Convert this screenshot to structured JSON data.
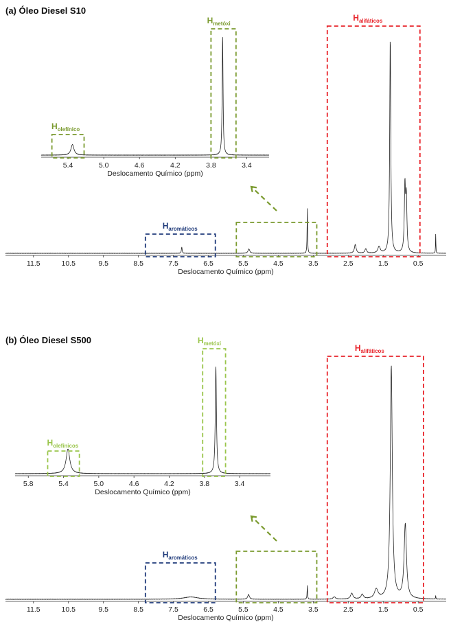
{
  "chart_data": [
    {
      "type": "line",
      "panel_label": "(a) Óleo Diesel S10",
      "main_plot": {
        "xlabel": "Deslocamento Químico (ppm)",
        "xlim": [
          12.3,
          -0.3
        ],
        "x_ticks": [
          "11.5",
          "10.5",
          "9.5",
          "8.5",
          "7.5",
          "6.5",
          "5.5",
          "4.5",
          "3.5",
          "2.5",
          "1.5",
          "0.5"
        ],
        "x_tick_values": [
          11.5,
          10.5,
          9.5,
          8.5,
          7.5,
          6.5,
          5.5,
          4.5,
          3.5,
          2.5,
          1.5,
          0.5
        ],
        "peaks": [
          {
            "ppm": 7.26,
            "rel": 0.03,
            "w": 0.012
          },
          {
            "ppm": 5.34,
            "rel": 0.02,
            "w": 0.03
          },
          {
            "ppm": 3.67,
            "rel": 0.21,
            "w": 0.008
          },
          {
            "ppm": 2.3,
            "rel": 0.04,
            "w": 0.03
          },
          {
            "ppm": 2.0,
            "rel": 0.02,
            "w": 0.03
          },
          {
            "ppm": 1.62,
            "rel": 0.03,
            "w": 0.04
          },
          {
            "ppm": 1.3,
            "rel": 1.0,
            "w": 0.018
          },
          {
            "ppm": 0.88,
            "rel": 0.3,
            "w": 0.02
          },
          {
            "ppm": 0.84,
            "rel": 0.24,
            "w": 0.02
          },
          {
            "ppm": 0.0,
            "rel": 0.09,
            "w": 0.006
          }
        ],
        "regions": [
          {
            "label": "H",
            "sub": "aromáticos",
            "color": "#1f3a7a",
            "from": 8.3,
            "to": 6.3
          },
          {
            "label": "H",
            "sub": "olefínico + metóxi",
            "color": "#7a9a2e",
            "from": 5.7,
            "to": 3.4,
            "hidden_label": true
          },
          {
            "label": "H",
            "sub": "alifáticos",
            "color": "#e8232a",
            "from": 3.1,
            "to": 0.45
          }
        ]
      },
      "inset": {
        "xlabel": "Deslocamento Químico (ppm)",
        "xlim": [
          5.7,
          3.15
        ],
        "x_ticks": [
          "5.4",
          "5.0",
          "4.6",
          "4.2",
          "3.8",
          "3.4"
        ],
        "x_tick_values": [
          5.4,
          5.0,
          4.6,
          4.2,
          3.8,
          3.4
        ],
        "peaks": [
          {
            "ppm": 5.35,
            "rel": 0.09,
            "w": 0.02
          },
          {
            "ppm": 3.67,
            "rel": 1.0,
            "w": 0.006
          }
        ],
        "labels": [
          {
            "label": "H",
            "sub": "olefínico",
            "color": "#7a9a2e",
            "from": 5.58,
            "to": 5.22
          },
          {
            "label": "H",
            "sub": "metóxi",
            "color": "#7a9a2e",
            "from": 3.8,
            "to": 3.52
          }
        ]
      }
    },
    {
      "type": "line",
      "panel_label": "(b) Óleo Diesel S500",
      "main_plot": {
        "xlabel": "Deslocamento Químico (ppm)",
        "xlim": [
          12.3,
          -0.3
        ],
        "x_ticks": [
          "11.5",
          "10.5",
          "9.5",
          "8.5",
          "7.5",
          "6.5",
          "5.5",
          "4.5",
          "3.5",
          "2.5",
          "1.5",
          "0.5"
        ],
        "x_tick_values": [
          11.5,
          10.5,
          9.5,
          8.5,
          7.5,
          6.5,
          5.5,
          4.5,
          3.5,
          2.5,
          1.5,
          0.5
        ],
        "peaks": [
          {
            "ppm": 7.0,
            "rel": 0.01,
            "w": 0.25
          },
          {
            "ppm": 5.35,
            "rel": 0.02,
            "w": 0.03
          },
          {
            "ppm": 3.67,
            "rel": 0.06,
            "w": 0.008
          },
          {
            "ppm": 2.9,
            "rel": 0.01,
            "w": 0.04
          },
          {
            "ppm": 2.4,
            "rel": 0.025,
            "w": 0.04
          },
          {
            "ppm": 2.1,
            "rel": 0.02,
            "w": 0.04
          },
          {
            "ppm": 1.7,
            "rel": 0.04,
            "w": 0.06
          },
          {
            "ppm": 1.27,
            "rel": 1.0,
            "w": 0.035
          },
          {
            "ppm": 0.87,
            "rel": 0.32,
            "w": 0.04
          },
          {
            "ppm": 0.0,
            "rel": 0.015,
            "w": 0.006
          }
        ],
        "regions": [
          {
            "label": "H",
            "sub": "aromáticos",
            "color": "#1f3a7a",
            "from": 8.3,
            "to": 6.3
          },
          {
            "label": "H",
            "sub": "olefínico + metóxi",
            "color": "#7a9a2e",
            "from": 5.7,
            "to": 3.4,
            "hidden_label": true
          },
          {
            "label": "H",
            "sub": "alifáticos",
            "color": "#e8232a",
            "from": 3.1,
            "to": 0.35
          }
        ]
      },
      "inset": {
        "xlabel": "Deslocamento Químico (ppm)",
        "xlim": [
          5.95,
          3.05
        ],
        "x_ticks": [
          "5.8",
          "5.4",
          "5.0",
          "4.6",
          "4.2",
          "3.8",
          "3.4"
        ],
        "x_tick_values": [
          5.8,
          5.4,
          5.0,
          4.6,
          4.2,
          3.8,
          3.4
        ],
        "peaks": [
          {
            "ppm": 5.35,
            "rel": 0.23,
            "w": 0.025
          },
          {
            "ppm": 3.67,
            "rel": 1.0,
            "w": 0.008
          }
        ],
        "labels": [
          {
            "label": "H",
            "sub": "olefínicos",
            "color": "#9ac54b",
            "from": 5.58,
            "to": 5.22
          },
          {
            "label": "H",
            "sub": "metóxi",
            "color": "#9ac54b",
            "from": 3.82,
            "to": 3.56
          }
        ]
      }
    }
  ]
}
